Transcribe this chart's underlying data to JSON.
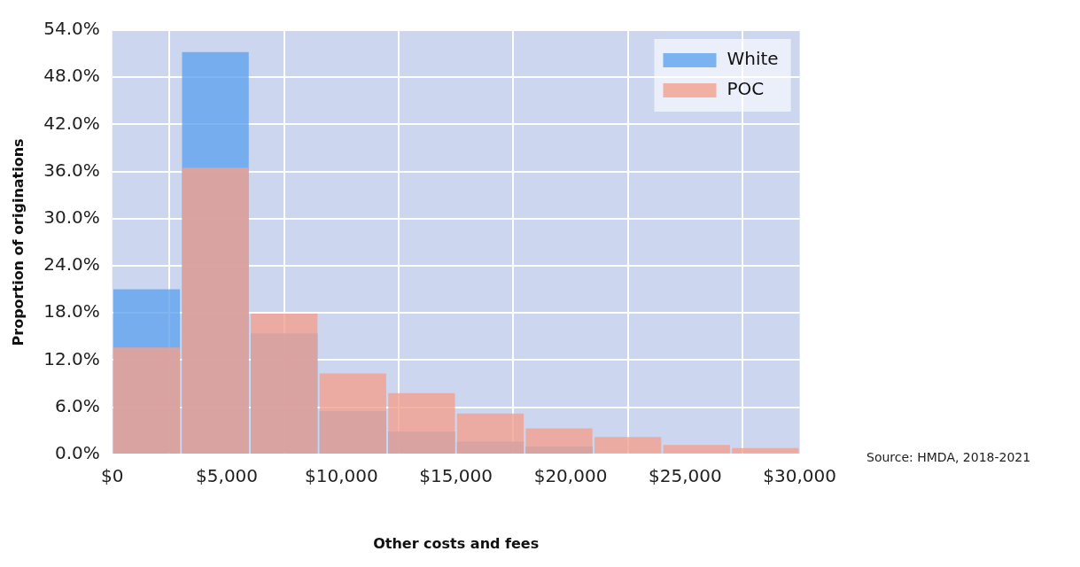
{
  "chart_data": {
    "type": "histogram",
    "xlabel": "Other costs and fees",
    "ylabel": "Proportion of originations",
    "bins": [
      0,
      3000,
      6000,
      9000,
      12000,
      15000,
      18000,
      21000,
      24000,
      27000,
      30000
    ],
    "series": [
      {
        "name": "White",
        "color": "#5fa3ee",
        "values": [
          21.0,
          51.2,
          15.4,
          5.5,
          2.9,
          1.6,
          1.0,
          null,
          null,
          null
        ]
      },
      {
        "name": "POC",
        "color": "#f2a08e",
        "values": [
          13.6,
          36.5,
          17.9,
          10.3,
          7.8,
          5.2,
          3.3,
          2.2,
          1.2,
          0.8
        ]
      }
    ],
    "xlim": [
      0,
      30000
    ],
    "xticks": [
      {
        "value": 0,
        "label": "$0"
      },
      {
        "value": 5000,
        "label": "$5,000"
      },
      {
        "value": 10000,
        "label": "$10,000"
      },
      {
        "value": 15000,
        "label": "$15,000"
      },
      {
        "value": 20000,
        "label": "$20,000"
      },
      {
        "value": 25000,
        "label": "$25,000"
      },
      {
        "value": 30000,
        "label": "$30,000"
      }
    ],
    "ylim": [
      0,
      54
    ],
    "yticks": [
      {
        "value": 0,
        "label": "0.0%"
      },
      {
        "value": 6,
        "label": "6.0%"
      },
      {
        "value": 12,
        "label": "12.0%"
      },
      {
        "value": 18,
        "label": "18.0%"
      },
      {
        "value": 24,
        "label": "24.0%"
      },
      {
        "value": 30,
        "label": "30.0%"
      },
      {
        "value": 36,
        "label": "36.0%"
      },
      {
        "value": 42,
        "label": "42.0%"
      },
      {
        "value": 48,
        "label": "48.0%"
      },
      {
        "value": 54,
        "label": "54.0%"
      }
    ],
    "grid": true,
    "legend": "top right",
    "annotations": [
      "Source: HMDA, 2018-2021"
    ]
  }
}
